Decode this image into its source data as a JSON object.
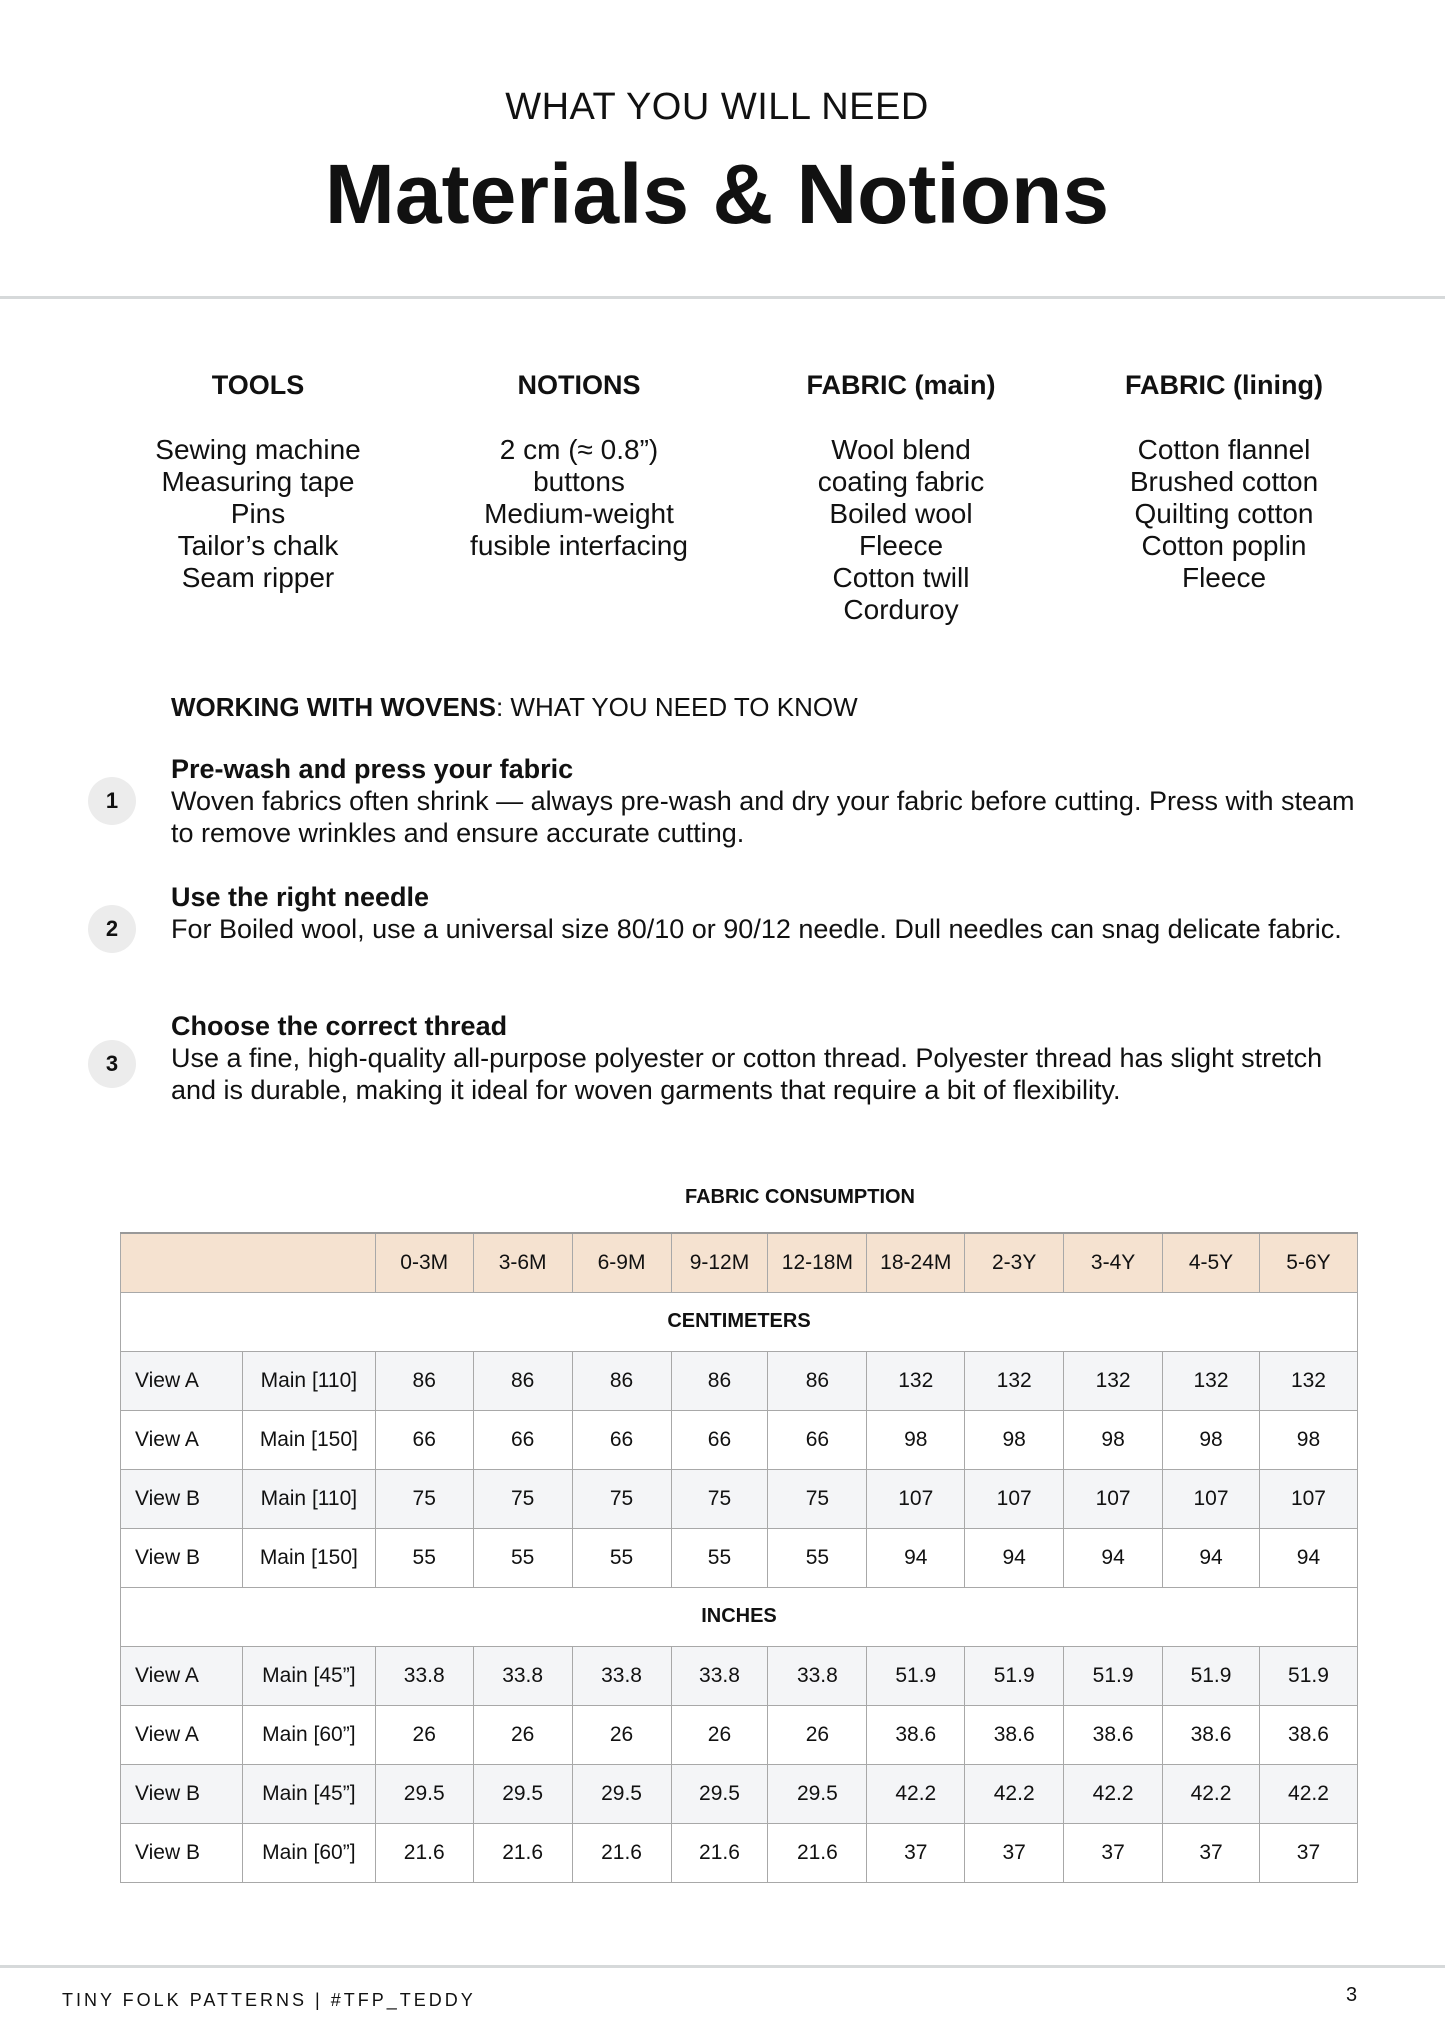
{
  "header": {
    "kicker": "WHAT YOU WILL NEED",
    "title": "Materials & Notions"
  },
  "columns": [
    {
      "heading": "TOOLS",
      "items": [
        "Sewing machine",
        "Measuring tape",
        "Pins",
        "Tailor’s chalk",
        "Seam ripper"
      ]
    },
    {
      "heading": "NOTIONS",
      "items": [
        "2 cm (≈ 0.8”)",
        "buttons",
        "Medium-weight",
        "fusible interfacing"
      ]
    },
    {
      "heading": "FABRIC (main)",
      "items": [
        "Wool blend",
        "coating fabric",
        "Boiled wool",
        "Fleece",
        "Cotton twill",
        "Corduroy"
      ]
    },
    {
      "heading": "FABRIC (lining)",
      "items": [
        "Cotton flannel",
        "Brushed cotton",
        "Quilting cotton",
        "Cotton poplin",
        "Fleece"
      ]
    }
  ],
  "wovens": {
    "bold": "WORKING WITH WOVENS",
    "rest": ": WHAT YOU NEED TO KNOW",
    "items": [
      {
        "num": "1",
        "title": "Pre-wash and press your fabric",
        "text": "Woven fabrics often shrink — always pre-wash and dry your fabric before cutting. Press with steam to remove wrinkles and ensure accurate cutting."
      },
      {
        "num": "2",
        "title": "Use the right needle",
        "text": "For Boiled wool, use a universal size 80/10 or 90/12 needle. Dull needles can snag delicate fabric."
      },
      {
        "num": "3",
        "title": "Choose the correct thread",
        "text": "Use a fine, high-quality all-purpose polyester or cotton thread. Polyester thread has slight stretch and is durable, making it ideal for woven garments that require a bit of flexibility."
      }
    ]
  },
  "table": {
    "title": "FABRIC CONSUMPTION",
    "sizes": [
      "0-3M",
      "3-6M",
      "6-9M",
      "9-12M",
      "12-18M",
      "18-24M",
      "2-3Y",
      "3-4Y",
      "4-5Y",
      "5-6Y"
    ],
    "header_color": "#f5e2d0",
    "sections": [
      {
        "label": "CENTIMETERS",
        "rows": [
          {
            "view": "View A",
            "fabric": "Main [110]",
            "values": [
              "86",
              "86",
              "86",
              "86",
              "86",
              "132",
              "132",
              "132",
              "132",
              "132"
            ]
          },
          {
            "view": "View A",
            "fabric": "Main [150]",
            "values": [
              "66",
              "66",
              "66",
              "66",
              "66",
              "98",
              "98",
              "98",
              "98",
              "98"
            ]
          },
          {
            "view": "View B",
            "fabric": "Main [110]",
            "values": [
              "75",
              "75",
              "75",
              "75",
              "75",
              "107",
              "107",
              "107",
              "107",
              "107"
            ]
          },
          {
            "view": "View B",
            "fabric": "Main [150]",
            "values": [
              "55",
              "55",
              "55",
              "55",
              "55",
              "94",
              "94",
              "94",
              "94",
              "94"
            ]
          }
        ]
      },
      {
        "label": "INCHES",
        "rows": [
          {
            "view": "View A",
            "fabric": "Main [45”]",
            "values": [
              "33.8",
              "33.8",
              "33.8",
              "33.8",
              "33.8",
              "51.9",
              "51.9",
              "51.9",
              "51.9",
              "51.9"
            ]
          },
          {
            "view": "View A",
            "fabric": "Main [60”]",
            "values": [
              "26",
              "26",
              "26",
              "26",
              "26",
              "38.6",
              "38.6",
              "38.6",
              "38.6",
              "38.6"
            ]
          },
          {
            "view": "View B",
            "fabric": "Main [45”]",
            "values": [
              "29.5",
              "29.5",
              "29.5",
              "29.5",
              "29.5",
              "42.2",
              "42.2",
              "42.2",
              "42.2",
              "42.2"
            ]
          },
          {
            "view": "View B",
            "fabric": "Main [60”]",
            "values": [
              "21.6",
              "21.6",
              "21.6",
              "21.6",
              "21.6",
              "37",
              "37",
              "37",
              "37",
              "37"
            ]
          }
        ]
      }
    ]
  },
  "footer": {
    "brand": "TINY FOLK PATTERNS | #TFP_TEDDY",
    "page": "3"
  }
}
